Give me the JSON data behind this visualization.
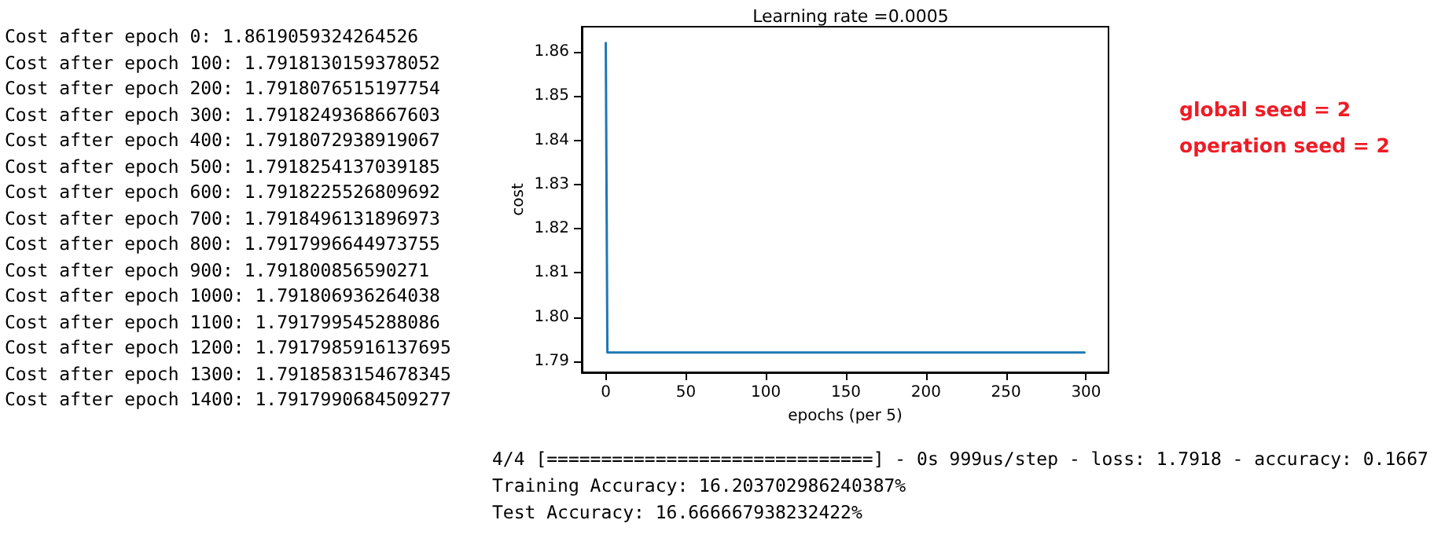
{
  "chart_data": {
    "type": "line",
    "title": "Learning rate =0.0005",
    "xlabel": "epochs (per 5)",
    "ylabel": "cost",
    "x": [
      0,
      1,
      299
    ],
    "series": [
      {
        "color": "#1f77b4",
        "values": [
          1.862,
          1.792,
          1.792
        ]
      }
    ],
    "xlim": [
      -15,
      314
    ],
    "xticks": [
      0,
      50,
      100,
      150,
      200,
      250,
      300
    ],
    "ylim": [
      1.7875,
      1.8657
    ],
    "yticks": [
      {
        "value": 1.79,
        "label": "1.79"
      },
      {
        "value": 1.8,
        "label": "1.80"
      },
      1.81,
      1.82,
      1.83,
      1.84,
      1.85,
      1.86
    ],
    "grid": false,
    "marker": "none",
    "line_style": "solid",
    "annotations": [
      "Cost after epoch 0: 1.8619059324264526",
      "Cost after epoch 100: 1.7918130159378052",
      "Cost after epoch 200: 1.7918076515197754",
      "Cost after epoch 300: 1.7918249368667603",
      "Cost after epoch 400: 1.7918072938919067",
      "Cost after epoch 500: 1.7918254137039185",
      "Cost after epoch 600: 1.7918225526809692",
      "Cost after epoch 700: 1.7918496131896973",
      "Cost after epoch 800: 1.7917996644973755",
      "Cost after epoch 900: 1.791800856590271",
      "Cost after epoch 1000: 1.791806936264038",
      "Cost after epoch 1100: 1.791799545288086",
      "Cost after epoch 1200: 1.7917985916137695",
      "Cost after epoch 1300: 1.7918583154678345",
      "Cost after epoch 1400: 1.7917990684509277",
      "global seed = 2",
      "operation seed = 2",
      "4/4 [==============================] - 0s 999us/step - loss: 1.7918 - accuracy: 0.1667",
      "Training Accuracy: 16.203702986240387%",
      "Test Accuracy: 16.666667938232422%"
    ]
  }
}
